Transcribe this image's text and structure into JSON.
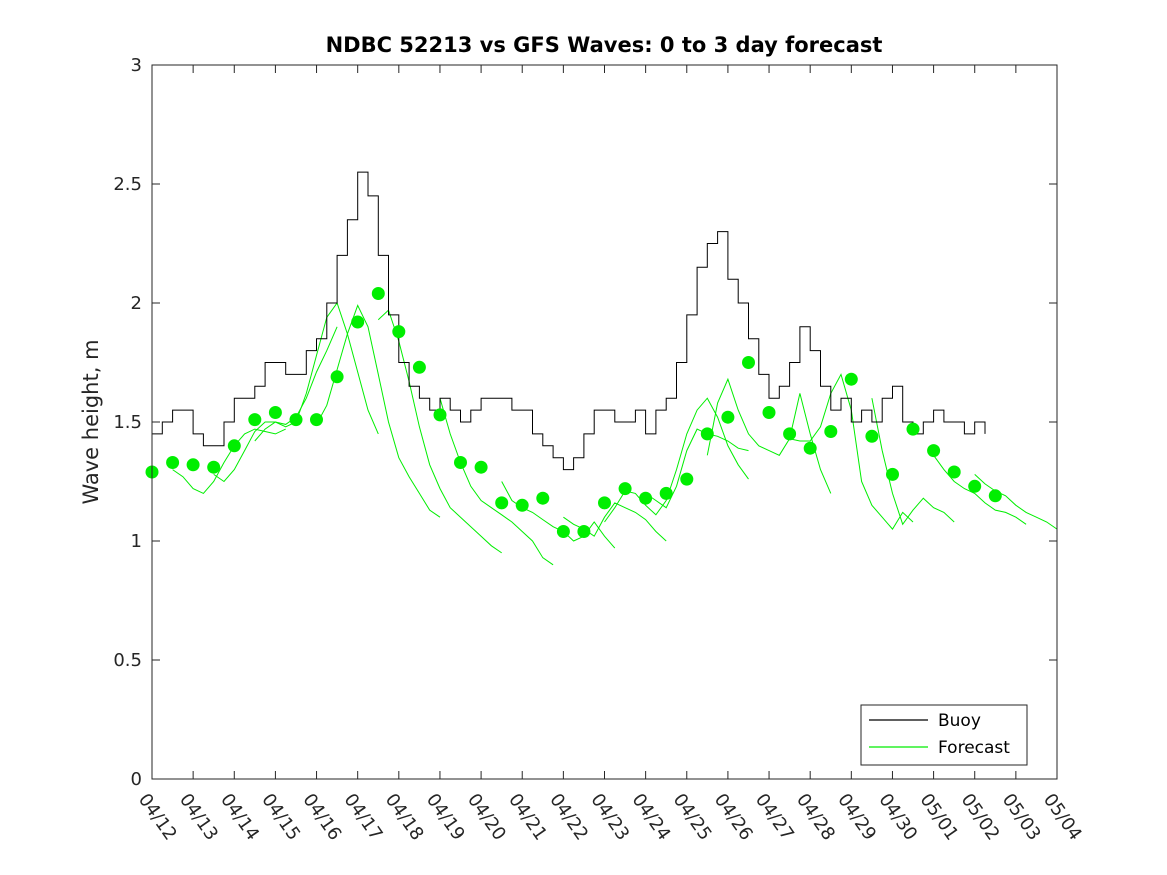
{
  "chart_data": {
    "type": "line",
    "title": "NDBC 52213 vs GFS Waves: 0 to 3 day forecast",
    "ylabel": "Wave height, m",
    "xlabel": "",
    "ylim": [
      0,
      3
    ],
    "xlim": [
      0,
      22
    ],
    "yticks": [
      0,
      0.5,
      1,
      1.5,
      2,
      2.5,
      3
    ],
    "ytick_labels": [
      "0",
      "0.5",
      "1",
      "1.5",
      "2",
      "2.5",
      "3"
    ],
    "xticks": [
      0,
      1,
      2,
      3,
      4,
      5,
      6,
      7,
      8,
      9,
      10,
      11,
      12,
      13,
      14,
      15,
      16,
      17,
      18,
      19,
      20,
      21,
      22
    ],
    "xtick_labels": [
      "04/12",
      "04/13",
      "04/14",
      "04/15",
      "04/16",
      "04/17",
      "04/18",
      "04/19",
      "04/20",
      "04/21",
      "04/22",
      "04/23",
      "04/24",
      "04/25",
      "04/26",
      "04/27",
      "04/28",
      "04/29",
      "04/30",
      "05/01",
      "05/02",
      "05/03",
      "05/04"
    ],
    "legend": {
      "position": "bottom-right",
      "entries": [
        "Buoy",
        "Forecast"
      ]
    },
    "colors": {
      "buoy": "#000000",
      "forecast": "#00ee00"
    },
    "series": [
      {
        "name": "Buoy",
        "x": [
          0,
          0.25,
          0.5,
          0.75,
          1,
          1.25,
          1.5,
          1.75,
          2,
          2.25,
          2.5,
          2.75,
          3,
          3.25,
          3.5,
          3.75,
          4,
          4.25,
          4.5,
          4.75,
          5,
          5.25,
          5.5,
          5.75,
          6,
          6.25,
          6.5,
          6.75,
          7,
          7.25,
          7.5,
          7.75,
          8,
          8.25,
          8.5,
          8.75,
          9,
          9.25,
          9.5,
          9.75,
          10,
          10.25,
          10.5,
          10.75,
          11,
          11.25,
          11.5,
          11.75,
          12,
          12.25,
          12.5,
          12.75,
          13,
          13.25,
          13.5,
          13.75,
          14,
          14.25,
          14.5,
          14.75,
          15,
          15.25,
          15.5,
          15.75,
          16,
          16.25,
          16.5,
          16.75,
          17,
          17.25,
          17.5,
          17.75,
          18,
          18.25,
          18.5,
          18.75,
          19,
          19.25,
          19.5,
          19.75,
          20,
          20.25
        ],
        "values": [
          1.45,
          1.5,
          1.55,
          1.55,
          1.45,
          1.4,
          1.4,
          1.5,
          1.6,
          1.6,
          1.65,
          1.75,
          1.75,
          1.7,
          1.7,
          1.8,
          1.85,
          2.0,
          2.2,
          2.35,
          2.55,
          2.45,
          2.2,
          1.95,
          1.75,
          1.65,
          1.6,
          1.55,
          1.6,
          1.55,
          1.5,
          1.55,
          1.6,
          1.6,
          1.6,
          1.55,
          1.55,
          1.45,
          1.4,
          1.35,
          1.3,
          1.35,
          1.45,
          1.55,
          1.55,
          1.5,
          1.5,
          1.55,
          1.45,
          1.55,
          1.6,
          1.75,
          1.95,
          2.15,
          2.25,
          2.3,
          2.1,
          2.0,
          1.85,
          1.7,
          1.6,
          1.65,
          1.75,
          1.9,
          1.8,
          1.65,
          1.55,
          1.6,
          1.5,
          1.55,
          1.5,
          1.6,
          1.65,
          1.5,
          1.45,
          1.5,
          1.55,
          1.5,
          1.5,
          1.45,
          1.5,
          1.45
        ]
      },
      {
        "name": "Forecast",
        "x": [
          0,
          0.5,
          1,
          1.5,
          2,
          2.5,
          3,
          3.5,
          4,
          4.5,
          5,
          5.5,
          6,
          6.5,
          7,
          7.5,
          8,
          8.5,
          9,
          9.5,
          10,
          10.5,
          11,
          11.5,
          12,
          12.5,
          13,
          13.5,
          14,
          14.5,
          15,
          15.5,
          16,
          16.5,
          17,
          17.5,
          18,
          18.5,
          19,
          19.5,
          20,
          20.5
        ],
        "values": [
          1.29,
          1.33,
          1.32,
          1.31,
          1.4,
          1.51,
          1.54,
          1.51,
          1.51,
          1.69,
          1.92,
          2.04,
          1.88,
          1.73,
          1.53,
          1.33,
          1.31,
          1.16,
          1.15,
          1.18,
          1.04,
          1.04,
          1.16,
          1.22,
          1.18,
          1.2,
          1.26,
          1.45,
          1.52,
          1.75,
          1.54,
          1.45,
          1.39,
          1.46,
          1.68,
          1.44,
          1.28,
          1.47,
          1.38,
          1.29,
          1.23,
          1.19
        ]
      }
    ],
    "forecast_runs": [
      {
        "x0": 0.5,
        "values": [
          1.3,
          1.27,
          1.22,
          1.2,
          1.25,
          1.33,
          1.4,
          1.45,
          1.47,
          1.46,
          1.45,
          1.47
        ]
      },
      {
        "x0": 1.5,
        "values": [
          1.28,
          1.25,
          1.3,
          1.38,
          1.46,
          1.5,
          1.5,
          1.49,
          1.52,
          1.6,
          1.71,
          1.8,
          1.9
        ]
      },
      {
        "x0": 2.5,
        "values": [
          1.42,
          1.47,
          1.5,
          1.48,
          1.5,
          1.62,
          1.78,
          1.94,
          2.0,
          1.87,
          1.71,
          1.55,
          1.45
        ]
      },
      {
        "x0": 4,
        "values": [
          1.49,
          1.57,
          1.72,
          1.87,
          1.99,
          1.9,
          1.7,
          1.5,
          1.35,
          1.27,
          1.2,
          1.13,
          1.1
        ]
      },
      {
        "x0": 5.5,
        "values": [
          1.93,
          1.97,
          1.84,
          1.67,
          1.48,
          1.32,
          1.22,
          1.14,
          1.1,
          1.06,
          1.02,
          0.98,
          0.95
        ]
      },
      {
        "x0": 7,
        "values": [
          1.6,
          1.45,
          1.33,
          1.23,
          1.17,
          1.14,
          1.11,
          1.08,
          1.04,
          1.0,
          0.93,
          0.9
        ]
      },
      {
        "x0": 8.5,
        "values": [
          1.25,
          1.17,
          1.14,
          1.12,
          1.09,
          1.06,
          1.04,
          1.0,
          1.02,
          1.08,
          1.02,
          0.97
        ]
      },
      {
        "x0": 10,
        "values": [
          1.1,
          1.07,
          1.05,
          1.02,
          1.1,
          1.16,
          1.14,
          1.12,
          1.09,
          1.04,
          1.0
        ]
      },
      {
        "x0": 11,
        "values": [
          1.08,
          1.14,
          1.21,
          1.2,
          1.15,
          1.11,
          1.17,
          1.3,
          1.45,
          1.55,
          1.6,
          1.52,
          1.4,
          1.32,
          1.26
        ]
      },
      {
        "x0": 12,
        "values": [
          1.2,
          1.17,
          1.14,
          1.23,
          1.38,
          1.47,
          1.45,
          1.44,
          1.42,
          1.39,
          1.38
        ]
      },
      {
        "x0": 13.5,
        "values": [
          1.36,
          1.58,
          1.68,
          1.55,
          1.45,
          1.4,
          1.38,
          1.36,
          1.43,
          1.62,
          1.45,
          1.3,
          1.2
        ]
      },
      {
        "x0": 15.5,
        "values": [
          1.43,
          1.42,
          1.42,
          1.48,
          1.62,
          1.7,
          1.55,
          1.25,
          1.15,
          1.1,
          1.05,
          1.12,
          1.08
        ]
      },
      {
        "x0": 17.5,
        "values": [
          1.6,
          1.38,
          1.2,
          1.07,
          1.13,
          1.18,
          1.14,
          1.12,
          1.08
        ]
      },
      {
        "x0": 19,
        "values": [
          1.36,
          1.3,
          1.25,
          1.22,
          1.2,
          1.16,
          1.13,
          1.12,
          1.1,
          1.07
        ]
      },
      {
        "x0": 20,
        "values": [
          1.28,
          1.24,
          1.21,
          1.19,
          1.15,
          1.12,
          1.1,
          1.08,
          1.05
        ]
      }
    ]
  }
}
